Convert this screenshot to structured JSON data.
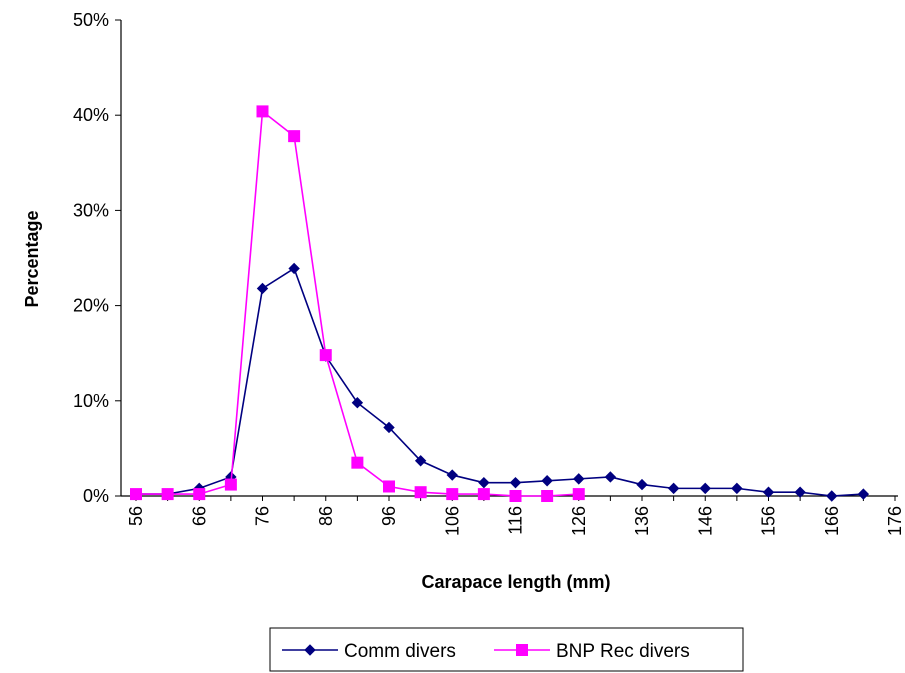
{
  "chart_data": {
    "type": "line",
    "title": "",
    "xlabel": "Carapace length (mm)",
    "ylabel": "Percentage",
    "x_ticks": [
      "56",
      "66",
      "76",
      "86",
      "96",
      "106",
      "116",
      "126",
      "136",
      "146",
      "156",
      "166",
      "176"
    ],
    "xlim": [
      56,
      176
    ],
    "y_ticks": [
      "0%",
      "10%",
      "20%",
      "30%",
      "40%",
      "50%"
    ],
    "ylim": [
      0,
      50
    ],
    "grid": false,
    "legend_position": "bottom-center",
    "series": [
      {
        "name": "Comm divers",
        "color": "#000080",
        "marker": "diamond",
        "x": [
          56,
          61,
          66,
          71,
          76,
          81,
          86,
          91,
          96,
          101,
          106,
          111,
          116,
          121,
          126,
          131,
          136,
          141,
          146,
          151,
          156,
          161,
          166,
          171
        ],
        "y": [
          0.2,
          0.2,
          0.8,
          2.0,
          21.8,
          23.9,
          14.7,
          9.8,
          7.2,
          3.7,
          2.2,
          1.4,
          1.4,
          1.6,
          1.8,
          2.0,
          1.2,
          0.8,
          0.8,
          0.8,
          0.4,
          0.4,
          0.0,
          0.2
        ]
      },
      {
        "name": "BNP Rec divers",
        "color": "#FF00FF",
        "marker": "square",
        "x": [
          56,
          61,
          66,
          71,
          76,
          81,
          86,
          91,
          96,
          101,
          106,
          111,
          116,
          121,
          126
        ],
        "y": [
          0.2,
          0.2,
          0.2,
          1.2,
          40.4,
          37.8,
          14.8,
          3.5,
          1.0,
          0.4,
          0.2,
          0.2,
          0.0,
          0.0,
          0.2
        ]
      }
    ]
  }
}
